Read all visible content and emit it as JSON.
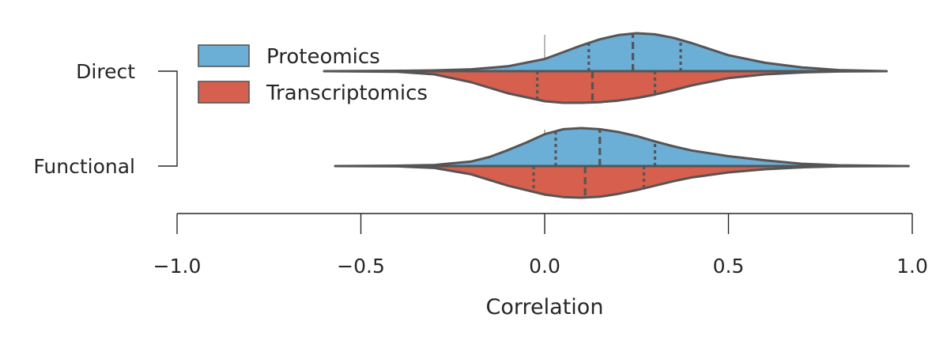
{
  "chart_data": {
    "type": "violin",
    "split": true,
    "orientation": "horizontal",
    "xlabel": "Correlation",
    "xlim": [
      -1.0,
      1.0
    ],
    "x_ticks": [
      -1.0,
      -0.5,
      0.0,
      0.5,
      1.0
    ],
    "x_tick_labels": [
      "−1.0",
      "−0.5",
      "0.0",
      "0.5",
      "1.0"
    ],
    "categories": [
      "Direct",
      "Functional"
    ],
    "bracket": {
      "from": "Direct",
      "to": "Functional"
    },
    "legend": {
      "position": "upper-left",
      "entries": [
        "Proteomics",
        "Transcriptomics"
      ]
    },
    "series": [
      {
        "name": "Proteomics",
        "side": "upper",
        "color": "#6baed6",
        "violins": [
          {
            "category": "Direct",
            "min": -0.6,
            "max": 0.93,
            "quartiles": [
              0.12,
              0.24,
              0.37
            ],
            "profile_x": [
              -0.6,
              -0.4,
              -0.3,
              -0.2,
              -0.1,
              0.0,
              0.05,
              0.1,
              0.15,
              0.2,
              0.25,
              0.3,
              0.35,
              0.4,
              0.45,
              0.5,
              0.6,
              0.7,
              0.8,
              0.93
            ],
            "profile_d": [
              0.0,
              0.01,
              0.02,
              0.05,
              0.13,
              0.32,
              0.5,
              0.68,
              0.84,
              0.95,
              1.0,
              0.97,
              0.88,
              0.74,
              0.58,
              0.42,
              0.22,
              0.1,
              0.03,
              0.0
            ]
          },
          {
            "category": "Functional",
            "min": -0.57,
            "max": 0.99,
            "quartiles": [
              0.03,
              0.15,
              0.3
            ],
            "profile_x": [
              -0.57,
              -0.4,
              -0.3,
              -0.2,
              -0.15,
              -0.1,
              -0.05,
              0.0,
              0.05,
              0.1,
              0.15,
              0.2,
              0.25,
              0.3,
              0.35,
              0.4,
              0.5,
              0.6,
              0.7,
              0.8,
              0.99
            ],
            "profile_d": [
              0.0,
              0.01,
              0.03,
              0.12,
              0.24,
              0.42,
              0.62,
              0.84,
              0.97,
              1.0,
              0.97,
              0.9,
              0.79,
              0.65,
              0.52,
              0.41,
              0.26,
              0.15,
              0.06,
              0.02,
              0.0
            ]
          }
        ]
      },
      {
        "name": "Transcriptomics",
        "side": "lower",
        "color": "#d65f4e",
        "violins": [
          {
            "category": "Direct",
            "min": -0.6,
            "max": 0.93,
            "quartiles": [
              -0.02,
              0.13,
              0.3
            ],
            "profile_x": [
              -0.6,
              -0.4,
              -0.3,
              -0.2,
              -0.1,
              0.0,
              0.05,
              0.1,
              0.15,
              0.2,
              0.25,
              0.3,
              0.35,
              0.4,
              0.5,
              0.6,
              0.7,
              0.8,
              0.93
            ],
            "profile_d": [
              0.0,
              0.02,
              0.1,
              0.35,
              0.7,
              0.95,
              1.0,
              1.0,
              0.98,
              0.93,
              0.85,
              0.74,
              0.6,
              0.45,
              0.22,
              0.1,
              0.04,
              0.01,
              0.0
            ]
          },
          {
            "category": "Functional",
            "min": -0.57,
            "max": 0.99,
            "quartiles": [
              -0.03,
              0.11,
              0.27
            ],
            "profile_x": [
              -0.57,
              -0.4,
              -0.3,
              -0.2,
              -0.1,
              0.0,
              0.05,
              0.1,
              0.15,
              0.2,
              0.25,
              0.3,
              0.35,
              0.4,
              0.5,
              0.6,
              0.7,
              0.8,
              0.99
            ],
            "profile_d": [
              0.0,
              0.01,
              0.06,
              0.26,
              0.62,
              0.9,
              0.98,
              1.0,
              0.97,
              0.88,
              0.76,
              0.62,
              0.48,
              0.36,
              0.2,
              0.1,
              0.04,
              0.01,
              0.0
            ]
          }
        ]
      }
    ]
  }
}
